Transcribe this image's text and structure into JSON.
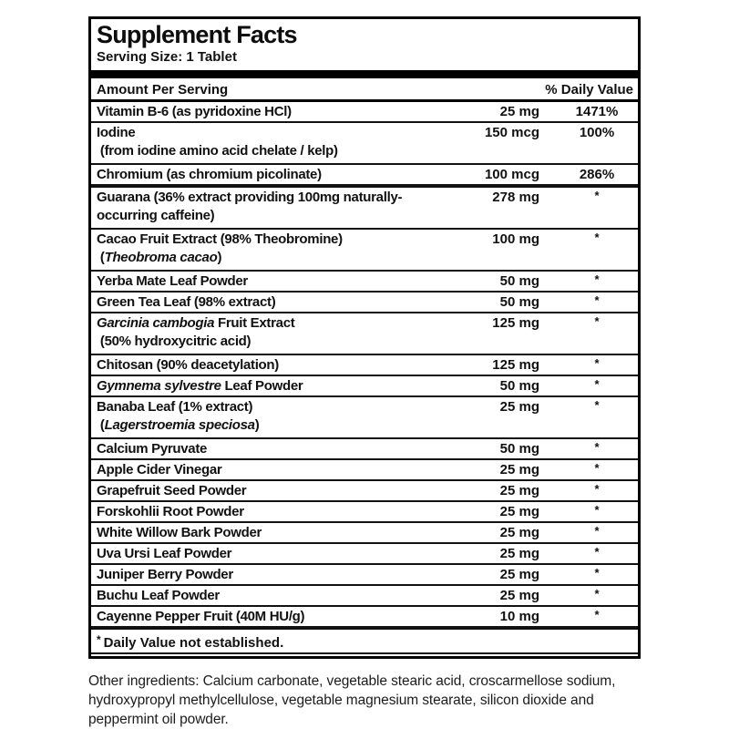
{
  "label": {
    "title": "Supplement Facts",
    "serving_size": "Serving Size: 1 Tablet",
    "header": {
      "amount_col": "Amount Per Serving",
      "dv_col": "% Daily Value"
    },
    "rows": [
      {
        "lines": [
          [
            {
              "t": "Vitamin B-6 (as pyridoxine HCl)"
            }
          ]
        ],
        "amount": "25 mg",
        "dv": "1471%",
        "thick_bottom": false
      },
      {
        "lines": [
          [
            {
              "t": "Iodine"
            }
          ],
          [
            {
              "t": " (from iodine amino acid chelate / kelp)"
            }
          ]
        ],
        "amount": "150 mcg",
        "dv": "100%",
        "thick_bottom": false
      },
      {
        "lines": [
          [
            {
              "t": "Chromium (as chromium picolinate)"
            }
          ]
        ],
        "amount": "100 mcg",
        "dv": "286%",
        "thick_bottom": true
      },
      {
        "lines": [
          [
            {
              "t": "Guarana (36% extract providing 100mg naturally-"
            }
          ],
          [
            {
              "t": "occurring caffeine)"
            }
          ]
        ],
        "amount": "278 mg",
        "dv": "*",
        "thick_bottom": false
      },
      {
        "lines": [
          [
            {
              "t": "Cacao Fruit Extract (98% Theobromine)"
            }
          ],
          [
            {
              "t": " ("
            },
            {
              "t": "Theobroma cacao",
              "i": true
            },
            {
              "t": ")"
            }
          ]
        ],
        "amount": "100 mg",
        "dv": "*",
        "thick_bottom": false
      },
      {
        "lines": [
          [
            {
              "t": "Yerba Mate Leaf Powder"
            }
          ]
        ],
        "amount": "50 mg",
        "dv": "*",
        "thick_bottom": false
      },
      {
        "lines": [
          [
            {
              "t": "Green Tea Leaf (98% extract)"
            }
          ]
        ],
        "amount": "50 mg",
        "dv": "*",
        "thick_bottom": false
      },
      {
        "lines": [
          [
            {
              "t": "Garcinia cambogia",
              "i": true
            },
            {
              "t": " Fruit Extract"
            }
          ],
          [
            {
              "t": " (50% hydroxycitric acid)"
            }
          ]
        ],
        "amount": "125 mg",
        "dv": "*",
        "thick_bottom": false
      },
      {
        "lines": [
          [
            {
              "t": "Chitosan (90% deacetylation)"
            }
          ]
        ],
        "amount": "125 mg",
        "dv": "*",
        "thick_bottom": false
      },
      {
        "lines": [
          [
            {
              "t": "Gymnema sylvestre",
              "i": true
            },
            {
              "t": " Leaf Powder"
            }
          ]
        ],
        "amount": "50 mg",
        "dv": "*",
        "thick_bottom": false
      },
      {
        "lines": [
          [
            {
              "t": "Banaba Leaf (1% extract)"
            }
          ],
          [
            {
              "t": " ("
            },
            {
              "t": "Lagerstroemia speciosa",
              "i": true
            },
            {
              "t": ")"
            }
          ]
        ],
        "amount": "25 mg",
        "dv": "*",
        "thick_bottom": false
      },
      {
        "lines": [
          [
            {
              "t": "Calcium Pyruvate"
            }
          ]
        ],
        "amount": "50 mg",
        "dv": "*",
        "thick_bottom": false
      },
      {
        "lines": [
          [
            {
              "t": "Apple Cider Vinegar"
            }
          ]
        ],
        "amount": "25 mg",
        "dv": "*",
        "thick_bottom": false
      },
      {
        "lines": [
          [
            {
              "t": "Grapefruit Seed Powder"
            }
          ]
        ],
        "amount": "25 mg",
        "dv": "*",
        "thick_bottom": false
      },
      {
        "lines": [
          [
            {
              "t": "Forskohlii Root Powder"
            }
          ]
        ],
        "amount": "25 mg",
        "dv": "*",
        "thick_bottom": false
      },
      {
        "lines": [
          [
            {
              "t": "White Willow Bark Powder"
            }
          ]
        ],
        "amount": "25 mg",
        "dv": "*",
        "thick_bottom": false
      },
      {
        "lines": [
          [
            {
              "t": "Uva Ursi Leaf Powder"
            }
          ]
        ],
        "amount": "25 mg",
        "dv": "*",
        "thick_bottom": false
      },
      {
        "lines": [
          [
            {
              "t": "Juniper Berry Powder"
            }
          ]
        ],
        "amount": "25 mg",
        "dv": "*",
        "thick_bottom": false
      },
      {
        "lines": [
          [
            {
              "t": "Buchu Leaf Powder"
            }
          ]
        ],
        "amount": "25 mg",
        "dv": "*",
        "thick_bottom": false
      },
      {
        "lines": [
          [
            {
              "t": "Cayenne Pepper Fruit (40M HU/g)"
            }
          ]
        ],
        "amount": "10 mg",
        "dv": "*",
        "thick_bottom": true
      }
    ],
    "footnote": {
      "symbol": "*",
      "text": "Daily Value not established."
    }
  },
  "other_ingredients": {
    "text": "Other ingredients: Calcium carbonate, vegetable stearic acid, croscarmellose sodium, hydroxypropyl methylcellulose, vegetable magnesium stearate, silicon dioxide and peppermint oil powder."
  },
  "colors": {
    "ink": "#111111",
    "border": "#000000",
    "background": "#ffffff"
  }
}
